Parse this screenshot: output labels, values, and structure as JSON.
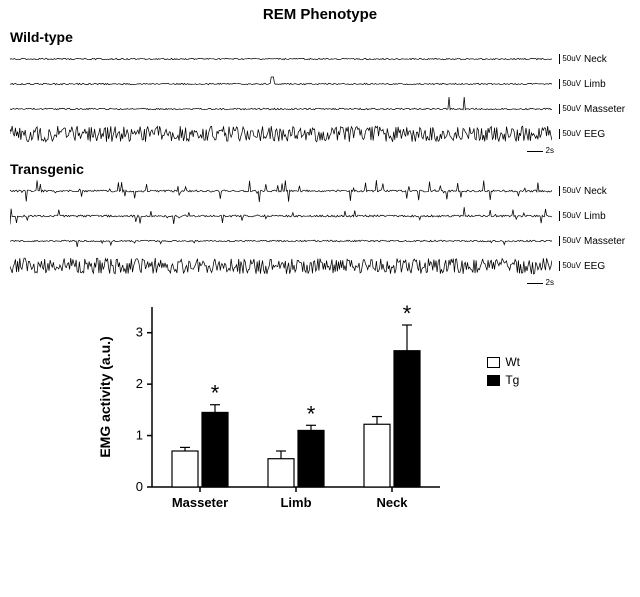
{
  "title": "REM Phenotype",
  "panels": [
    {
      "label": "Wild-type",
      "traces": [
        {
          "name": "Neck",
          "mode": "sparse-low",
          "scale": "50uV"
        },
        {
          "name": "Limb",
          "mode": "sparse-one",
          "scale": "50uV"
        },
        {
          "name": "Masseter",
          "mode": "sparse-twin",
          "scale": "50uV"
        },
        {
          "name": "EEG",
          "mode": "dense",
          "scale": "50uV"
        }
      ],
      "time_scale": "2s"
    },
    {
      "label": "Transgenic",
      "traces": [
        {
          "name": "Neck",
          "mode": "bursty-high",
          "scale": "50uV"
        },
        {
          "name": "Limb",
          "mode": "bursty-mid",
          "scale": "50uV"
        },
        {
          "name": "Masseter",
          "mode": "sparse-low2",
          "scale": "50uV"
        },
        {
          "name": "EEG",
          "mode": "dense",
          "scale": "50uV"
        }
      ],
      "time_scale": "2s"
    }
  ],
  "bar_chart": {
    "y_label": "EMG activity (a.u.)",
    "y_label_fontsize": 14,
    "y_label_fontweight": "bold",
    "y_max": 3.5,
    "y_ticks": [
      0,
      1,
      2,
      3
    ],
    "categories": [
      "Masseter",
      "Limb",
      "Neck"
    ],
    "category_fontsize": 13,
    "category_fontweight": "bold",
    "groups": [
      {
        "key": "Wt",
        "label": "Wt",
        "fill": "#ffffff",
        "stroke": "#000000"
      },
      {
        "key": "Tg",
        "label": "Tg",
        "fill": "#000000",
        "stroke": "#000000"
      }
    ],
    "data": {
      "Masseter": {
        "Wt": {
          "mean": 0.7,
          "err": 0.07,
          "sig": false
        },
        "Tg": {
          "mean": 1.45,
          "err": 0.15,
          "sig": true
        }
      },
      "Limb": {
        "Wt": {
          "mean": 0.55,
          "err": 0.15,
          "sig": false
        },
        "Tg": {
          "mean": 1.1,
          "err": 0.1,
          "sig": true
        }
      },
      "Neck": {
        "Wt": {
          "mean": 1.22,
          "err": 0.15,
          "sig": false
        },
        "Tg": {
          "mean": 2.65,
          "err": 0.5,
          "sig": true
        }
      }
    },
    "significance_marker": "*",
    "significance_fontsize": 22,
    "bar_width": 0.8,
    "axis_color": "#000000",
    "tick_color": "#000000",
    "background_color": "#ffffff"
  }
}
